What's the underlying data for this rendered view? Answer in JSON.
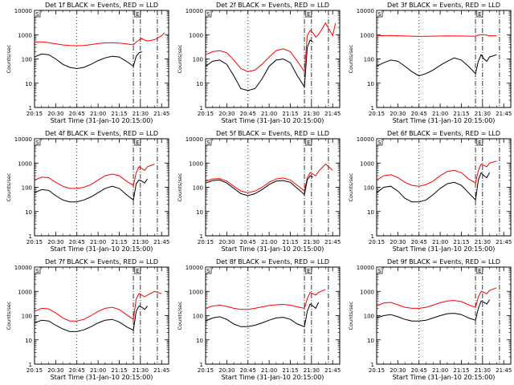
{
  "chart_data": [
    {
      "type": "line",
      "title": "Det 1f BLACK = Events, RED = LLD",
      "xlabel": "Start Time (31-Jan-10 20:15:00)",
      "ylabel": "Counts/sec",
      "ylog": true,
      "ylim": [
        1,
        10000
      ],
      "xticks": [
        "20:15",
        "20:30",
        "20:45",
        "21:00",
        "21:15",
        "21:30",
        "21:45"
      ],
      "yticks": [
        "1",
        "10",
        "100",
        "1000",
        "10000"
      ],
      "saa_markers": [
        "S",
        "E"
      ],
      "series": [
        {
          "name": "LLD",
          "color": "#ff0000",
          "x": [
            0,
            5,
            10,
            15,
            20,
            25,
            30,
            35,
            40,
            45,
            50,
            55,
            60,
            65,
            70,
            72,
            74,
            76,
            78,
            80,
            85,
            90,
            92
          ],
          "y": [
            500,
            510,
            470,
            420,
            380,
            360,
            350,
            360,
            390,
            430,
            460,
            470,
            450,
            420,
            380,
            500,
            600,
            700,
            600,
            550,
            620,
            900,
            1200
          ]
        },
        {
          "name": "Events",
          "color": "#000000",
          "x": [
            0,
            5,
            10,
            15,
            20,
            25,
            30,
            35,
            40,
            45,
            50,
            55,
            60,
            65,
            70,
            72,
            74,
            76
          ],
          "y": [
            120,
            160,
            150,
            100,
            60,
            45,
            40,
            45,
            60,
            85,
            110,
            130,
            120,
            80,
            50,
            130,
            180,
            200
          ]
        }
      ]
    },
    {
      "type": "line",
      "title": "Det 2f BLACK = Events, RED = LLD",
      "xlabel": "Start Time (31-Jan-10 20:15:00)",
      "ylabel": "Counts/sec",
      "ylog": true,
      "ylim": [
        1,
        10000
      ],
      "xticks": [
        "20:15",
        "20:30",
        "20:45",
        "21:00",
        "21:15",
        "21:30",
        "21:45"
      ],
      "yticks": [
        "1",
        "10",
        "100",
        "1000",
        "10000"
      ],
      "saa_markers": [
        "S",
        "E"
      ],
      "series": [
        {
          "name": "LLD",
          "color": "#ff0000",
          "x": [
            0,
            5,
            10,
            15,
            20,
            25,
            30,
            35,
            40,
            45,
            50,
            55,
            60,
            65,
            70,
            72,
            74,
            76,
            78,
            80,
            85,
            90,
            92
          ],
          "y": [
            150,
            200,
            220,
            180,
            90,
            40,
            30,
            35,
            60,
            120,
            220,
            260,
            200,
            80,
            30,
            900,
            1500,
            1200,
            800,
            1000,
            3000,
            900,
            3000
          ]
        },
        {
          "name": "Events",
          "color": "#000000",
          "x": [
            0,
            5,
            10,
            15,
            20,
            25,
            30,
            35,
            40,
            45,
            50,
            55,
            60,
            65,
            70,
            72,
            74,
            76
          ],
          "y": [
            50,
            80,
            90,
            60,
            20,
            6,
            5,
            6,
            15,
            50,
            90,
            100,
            70,
            20,
            7,
            300,
            600,
            500
          ]
        }
      ]
    },
    {
      "type": "line",
      "title": "Det 3f BLACK = Events, RED = LLD",
      "xlabel": "Start Time (31-Jan-10 20:15:00)",
      "ylabel": "Counts/sec",
      "ylog": true,
      "ylim": [
        1,
        10000
      ],
      "xticks": [
        "20:15",
        "20:30",
        "20:45",
        "21:00",
        "21:15",
        "21:30",
        "21:45"
      ],
      "yticks": [
        "1",
        "10",
        "100",
        "1000",
        "10000"
      ],
      "saa_markers": [
        "S",
        "E"
      ],
      "series": [
        {
          "name": "LLD",
          "color": "#ff0000",
          "x": [
            0,
            10,
            20,
            30,
            40,
            50,
            60,
            70,
            72,
            74,
            76,
            78,
            80,
            85
          ],
          "y": [
            900,
            920,
            880,
            850,
            870,
            890,
            880,
            860,
            950,
            1000,
            1000,
            950,
            900,
            900
          ]
        },
        {
          "name": "Events",
          "color": "#000000",
          "x": [
            0,
            5,
            10,
            15,
            20,
            25,
            30,
            35,
            40,
            45,
            50,
            55,
            60,
            65,
            70,
            72,
            74,
            76,
            78,
            80,
            85
          ],
          "y": [
            50,
            70,
            90,
            80,
            50,
            30,
            20,
            25,
            35,
            55,
            80,
            110,
            90,
            50,
            25,
            80,
            150,
            100,
            80,
            120,
            150
          ]
        }
      ]
    },
    {
      "type": "line",
      "title": "Det 4f BLACK = Events, RED = LLD",
      "xlabel": "Start Time (31-Jan-10 20:15:00)",
      "ylabel": "Counts/sec",
      "ylog": true,
      "ylim": [
        1,
        10000
      ],
      "xticks": [
        "20:15",
        "20:30",
        "20:45",
        "21:00",
        "21:15",
        "21:30",
        "21:45"
      ],
      "yticks": [
        "1",
        "10",
        "100",
        "1000",
        "10000"
      ],
      "saa_markers": [
        "S",
        "E"
      ],
      "series": [
        {
          "name": "LLD",
          "color": "#ff0000",
          "x": [
            0,
            5,
            10,
            15,
            20,
            25,
            30,
            35,
            40,
            45,
            50,
            55,
            60,
            65,
            70,
            72,
            74,
            76,
            78,
            80,
            85
          ],
          "y": [
            200,
            260,
            250,
            160,
            110,
            90,
            90,
            100,
            130,
            200,
            300,
            350,
            300,
            180,
            120,
            400,
            700,
            600,
            500,
            700,
            900
          ]
        },
        {
          "name": "Events",
          "color": "#000000",
          "x": [
            0,
            5,
            10,
            15,
            20,
            25,
            30,
            35,
            40,
            45,
            50,
            55,
            60,
            65,
            70,
            72,
            74,
            76,
            78,
            80
          ],
          "y": [
            60,
            80,
            75,
            45,
            30,
            25,
            25,
            30,
            40,
            60,
            90,
            110,
            90,
            50,
            30,
            140,
            200,
            180,
            150,
            220
          ]
        }
      ]
    },
    {
      "type": "line",
      "title": "Det 5f BLACK = Events, RED = LLD",
      "xlabel": "Start Time (31-Jan-10 20:15:00)",
      "ylabel": "Counts/sec",
      "ylog": true,
      "ylim": [
        1,
        10000
      ],
      "xticks": [
        "20:15",
        "20:30",
        "20:45",
        "21:00",
        "21:15",
        "21:30",
        "21:45"
      ],
      "yticks": [
        "1",
        "10",
        "100",
        "1000",
        "10000"
      ],
      "saa_markers": [
        "S",
        "E"
      ],
      "series": [
        {
          "name": "LLD",
          "color": "#ff0000",
          "x": [
            0,
            5,
            10,
            15,
            20,
            25,
            30,
            35,
            40,
            45,
            50,
            55,
            60,
            65,
            70,
            72,
            74,
            76,
            78,
            80,
            85,
            90
          ],
          "y": [
            180,
            220,
            230,
            180,
            110,
            70,
            60,
            70,
            100,
            160,
            220,
            240,
            200,
            120,
            70,
            250,
            400,
            350,
            300,
            450,
            900,
            500
          ]
        },
        {
          "name": "Events",
          "color": "#000000",
          "x": [
            0,
            5,
            10,
            15,
            20,
            25,
            30,
            35,
            40,
            45,
            50,
            55,
            60,
            65,
            70,
            72,
            74,
            76
          ],
          "y": [
            150,
            190,
            200,
            150,
            90,
            55,
            45,
            55,
            80,
            130,
            180,
            190,
            160,
            90,
            50,
            200,
            300,
            260
          ]
        }
      ]
    },
    {
      "type": "line",
      "title": "Det 6f BLACK = Events, RED = LLD",
      "xlabel": "Start Time (31-Jan-10 20:15:00)",
      "ylabel": "Counts/sec",
      "ylog": true,
      "ylim": [
        1,
        10000
      ],
      "xticks": [
        "20:15",
        "20:30",
        "20:45",
        "21:00",
        "21:15",
        "21:30",
        "21:45"
      ],
      "yticks": [
        "1",
        "10",
        "100",
        "1000",
        "10000"
      ],
      "saa_markers": [
        "S",
        "E"
      ],
      "series": [
        {
          "name": "LLD",
          "color": "#ff0000",
          "x": [
            0,
            5,
            10,
            15,
            20,
            25,
            30,
            35,
            40,
            45,
            50,
            55,
            60,
            65,
            70,
            72,
            74,
            76,
            78,
            80,
            85
          ],
          "y": [
            200,
            300,
            330,
            250,
            160,
            120,
            110,
            130,
            180,
            300,
            450,
            500,
            400,
            220,
            150,
            500,
            900,
            800,
            700,
            1000,
            1200
          ]
        },
        {
          "name": "Events",
          "color": "#000000",
          "x": [
            0,
            5,
            10,
            15,
            20,
            25,
            30,
            35,
            40,
            45,
            50,
            55,
            60,
            65,
            70,
            72,
            74,
            76,
            78,
            80
          ],
          "y": [
            60,
            100,
            110,
            70,
            35,
            25,
            25,
            30,
            50,
            90,
            140,
            160,
            120,
            60,
            30,
            200,
            400,
            300,
            250,
            400
          ]
        }
      ]
    },
    {
      "type": "line",
      "title": "Det 7f BLACK = Events, RED = LLD",
      "xlabel": "Start Time (31-Jan-10 20:15:00)",
      "ylabel": "Counts/sec",
      "ylog": true,
      "ylim": [
        1,
        10000
      ],
      "xticks": [
        "20:15",
        "20:30",
        "20:45",
        "21:00",
        "21:15",
        "21:30",
        "21:45"
      ],
      "yticks": [
        "1",
        "10",
        "100",
        "1000",
        "10000"
      ],
      "saa_markers": [
        "S",
        "E"
      ],
      "series": [
        {
          "name": "LLD",
          "color": "#ff0000",
          "x": [
            0,
            5,
            10,
            15,
            20,
            25,
            30,
            35,
            40,
            45,
            50,
            55,
            60,
            65,
            70,
            72,
            74,
            76,
            78,
            80,
            85,
            90
          ],
          "y": [
            150,
            200,
            190,
            130,
            80,
            60,
            60,
            70,
            100,
            150,
            200,
            220,
            180,
            110,
            70,
            500,
            800,
            700,
            600,
            700,
            1000,
            800
          ]
        },
        {
          "name": "Events",
          "color": "#000000",
          "x": [
            0,
            5,
            10,
            15,
            20,
            25,
            30,
            35,
            40,
            45,
            50,
            55,
            60,
            65,
            70,
            72,
            74,
            76,
            78,
            80
          ],
          "y": [
            50,
            65,
            60,
            40,
            28,
            22,
            22,
            26,
            35,
            50,
            65,
            70,
            55,
            35,
            25,
            150,
            250,
            220,
            180,
            250
          ]
        }
      ]
    },
    {
      "type": "line",
      "title": "Det 8f BLACK = Events, RED = LLD",
      "xlabel": "Start Time (31-Jan-10 20:15:00)",
      "ylabel": "Counts/sec",
      "ylog": true,
      "ylim": [
        1,
        10000
      ],
      "xticks": [
        "20:15",
        "20:30",
        "20:45",
        "21:00",
        "21:15",
        "21:30",
        "21:45"
      ],
      "yticks": [
        "1",
        "10",
        "100",
        "1000",
        "10000"
      ],
      "saa_markers": [
        "S",
        "E"
      ],
      "series": [
        {
          "name": "LLD",
          "color": "#ff0000",
          "x": [
            0,
            5,
            10,
            15,
            20,
            25,
            30,
            35,
            40,
            45,
            50,
            55,
            60,
            65,
            70,
            72,
            74,
            76,
            78,
            80,
            85
          ],
          "y": [
            200,
            250,
            270,
            240,
            200,
            180,
            180,
            200,
            230,
            260,
            280,
            290,
            270,
            230,
            200,
            500,
            900,
            800,
            700,
            900,
            1200
          ]
        },
        {
          "name": "Events",
          "color": "#000000",
          "x": [
            0,
            5,
            10,
            15,
            20,
            25,
            30,
            35,
            40,
            45,
            50,
            55,
            60,
            65,
            70,
            72,
            74,
            76,
            78,
            80
          ],
          "y": [
            60,
            80,
            90,
            70,
            45,
            35,
            35,
            40,
            50,
            65,
            80,
            85,
            70,
            45,
            35,
            150,
            300,
            250,
            200,
            350
          ]
        }
      ]
    },
    {
      "type": "line",
      "title": "Det 9f BLACK = Events, RED = LLD",
      "xlabel": "Start Time (31-Jan-10 20:15:00)",
      "ylabel": "Counts/sec",
      "ylog": true,
      "ylim": [
        1,
        10000
      ],
      "xticks": [
        "20:15",
        "20:30",
        "20:45",
        "21:00",
        "21:15",
        "21:30",
        "21:45"
      ],
      "yticks": [
        "1",
        "10",
        "100",
        "1000",
        "10000"
      ],
      "saa_markers": [
        "S",
        "E"
      ],
      "series": [
        {
          "name": "LLD",
          "color": "#ff0000",
          "x": [
            0,
            5,
            10,
            15,
            20,
            25,
            30,
            35,
            40,
            45,
            50,
            55,
            60,
            65,
            70,
            72,
            74,
            76,
            78,
            80,
            85
          ],
          "y": [
            250,
            330,
            350,
            280,
            220,
            200,
            200,
            220,
            270,
            340,
            400,
            420,
            380,
            280,
            220,
            600,
            1000,
            900,
            800,
            1100,
            1400
          ]
        },
        {
          "name": "Events",
          "color": "#000000",
          "x": [
            0,
            5,
            10,
            15,
            20,
            25,
            30,
            35,
            40,
            45,
            50,
            55,
            60,
            65,
            70,
            72,
            74,
            76,
            78,
            80
          ],
          "y": [
            80,
            100,
            110,
            90,
            70,
            60,
            60,
            65,
            80,
            100,
            120,
            125,
            110,
            80,
            65,
            200,
            400,
            350,
            300,
            450
          ]
        }
      ]
    }
  ]
}
